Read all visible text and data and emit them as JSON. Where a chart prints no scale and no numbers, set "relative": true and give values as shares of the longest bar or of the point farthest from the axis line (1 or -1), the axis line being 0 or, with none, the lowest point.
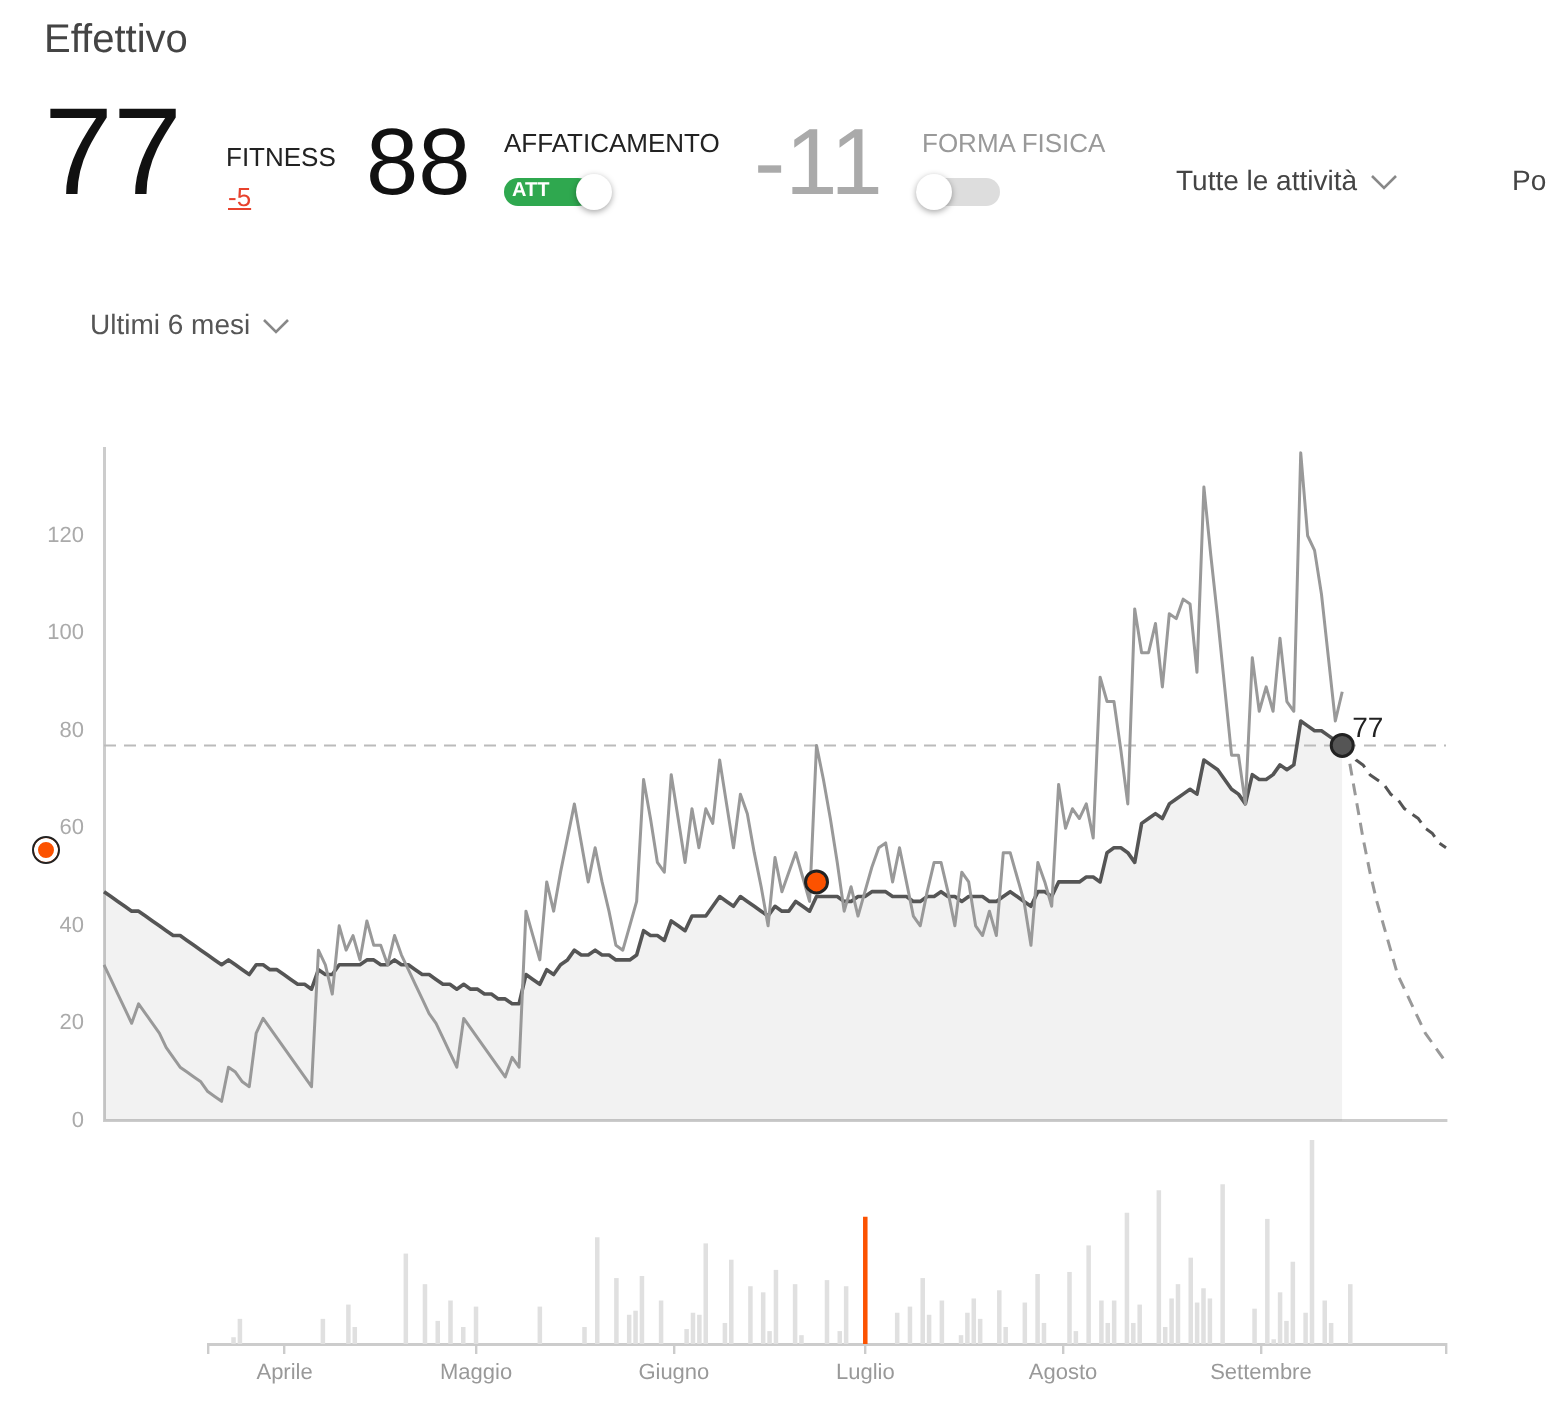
{
  "chart_data": [
    {
      "type": "line",
      "title": "Effettivo",
      "annotations": [
        "77",
        "FITNESS",
        "-5",
        "88",
        "AFFATICAMENTO",
        "ATT",
        "-11",
        "FORMA FISICA",
        "Tutte le attività",
        "Po",
        "Ultimi 6 mesi",
        {
          "text": "77",
          "y": 77
        }
      ],
      "categories": [
        null,
        null,
        null,
        null,
        null,
        null,
        null,
        null,
        null,
        null,
        null,
        null,
        null,
        null,
        null,
        null,
        null,
        null,
        null,
        null,
        null,
        null,
        null,
        null,
        null,
        null,
        null,
        null,
        null,
        null,
        null,
        null,
        null,
        null,
        null,
        null,
        null,
        null,
        null,
        null,
        null,
        null,
        null,
        null,
        null,
        null,
        null,
        null,
        null,
        null,
        null,
        null,
        null,
        null,
        null,
        null,
        null,
        null,
        null,
        null,
        null,
        null,
        null,
        null,
        null,
        null,
        null,
        null,
        null,
        null,
        null,
        null,
        null,
        null,
        null,
        null,
        null,
        null,
        null,
        null,
        null,
        null,
        null,
        null,
        null,
        null,
        null,
        null,
        null,
        null,
        null,
        null,
        null,
        null,
        null,
        null,
        null,
        null,
        null,
        null,
        null,
        null,
        null,
        null,
        null,
        null,
        null,
        null,
        null,
        null,
        null,
        null,
        null,
        null,
        null,
        null,
        null,
        null,
        null,
        null,
        null,
        null,
        null,
        null,
        null,
        null,
        null,
        null,
        null,
        null,
        null,
        null,
        null,
        null,
        null,
        null,
        null,
        null,
        null,
        null,
        null,
        null,
        null,
        null,
        null,
        null,
        null,
        null,
        null,
        null,
        null,
        null,
        null,
        null,
        null,
        null,
        null,
        null,
        null,
        null,
        null,
        null,
        null,
        null,
        null,
        null,
        null,
        null,
        null,
        null,
        null,
        null,
        null,
        null,
        null,
        null,
        null,
        null,
        null,
        null,
        null,
        null,
        null,
        null,
        null,
        null,
        null,
        null,
        null,
        null,
        null,
        null,
        null,
        null,
        null
      ],
      "ylim": [
        0,
        138
      ],
      "yticks": [
        0,
        20,
        40,
        60,
        80,
        100,
        120
      ],
      "tick_labels": "y",
      "grid": false,
      "legend": false,
      "marker": "none",
      "ref_lines": [
        {
          "axis": "y",
          "value": 77,
          "color": "#bbbbbb",
          "line_style": "dashed"
        }
      ],
      "series": [
        {
          "type": "area",
          "color": "#555555",
          "values": [
            47,
            46,
            45,
            44,
            43,
            43,
            42,
            41,
            40,
            39,
            38,
            38,
            37,
            36,
            35,
            34,
            33,
            32,
            33,
            32,
            31,
            30,
            32,
            32,
            31,
            31,
            30,
            29,
            28,
            28,
            27,
            31,
            30,
            30,
            32,
            32,
            32,
            32,
            33,
            33,
            32,
            32,
            33,
            32,
            32,
            31,
            30,
            30,
            29,
            28,
            28,
            27,
            28,
            27,
            27,
            26,
            26,
            25,
            25,
            24,
            24,
            30,
            29,
            28,
            31,
            30,
            32,
            33,
            35,
            34,
            34,
            35,
            34,
            34,
            33,
            33,
            33,
            34,
            39,
            38,
            38,
            37,
            41,
            40,
            39,
            42,
            42,
            42,
            44,
            46,
            45,
            44,
            46,
            45,
            44,
            43,
            42,
            44,
            43,
            43,
            45,
            44,
            43,
            46,
            46,
            46,
            46,
            45,
            45,
            46,
            46,
            47,
            47,
            47,
            46,
            46,
            46,
            45,
            45,
            46,
            46,
            47,
            46,
            46,
            45,
            46,
            46,
            46,
            45,
            45,
            46,
            47,
            46,
            45,
            44,
            47,
            47,
            46,
            49,
            49,
            49,
            49,
            50,
            50,
            49,
            55,
            56,
            56,
            55,
            53,
            61,
            62,
            63,
            62,
            65,
            66,
            67,
            68,
            67,
            74,
            73,
            72,
            70,
            68,
            67,
            65,
            71,
            70,
            70,
            71,
            73,
            72,
            73,
            82,
            81,
            80,
            80,
            79,
            78,
            77,
            null,
            null,
            null,
            null,
            null,
            null,
            null,
            null,
            null,
            null,
            null,
            null,
            null,
            null,
            null
          ]
        },
        {
          "type": "line",
          "color": "#999999",
          "values": [
            32,
            29,
            26,
            23,
            20,
            24,
            22,
            20,
            18,
            15,
            13,
            11,
            10,
            9,
            8,
            6,
            5,
            4,
            11,
            10,
            8,
            7,
            18,
            21,
            19,
            17,
            15,
            13,
            11,
            9,
            7,
            35,
            32,
            26,
            40,
            35,
            38,
            33,
            41,
            36,
            36,
            32,
            38,
            34,
            31,
            28,
            25,
            22,
            20,
            17,
            14,
            11,
            21,
            19,
            17,
            15,
            13,
            11,
            9,
            13,
            11,
            43,
            38,
            33,
            49,
            43,
            51,
            58,
            65,
            57,
            49,
            56,
            49,
            43,
            36,
            35,
            40,
            45,
            70,
            62,
            53,
            51,
            71,
            62,
            53,
            64,
            56,
            64,
            61,
            74,
            65,
            56,
            67,
            63,
            55,
            48,
            40,
            54,
            47,
            51,
            55,
            50,
            45,
            77,
            70,
            62,
            53,
            43,
            48,
            42,
            47,
            52,
            56,
            57,
            49,
            56,
            49,
            42,
            40,
            47,
            53,
            53,
            47,
            40,
            51,
            49,
            40,
            38,
            43,
            38,
            55,
            55,
            50,
            45,
            36,
            53,
            49,
            44,
            69,
            60,
            64,
            62,
            65,
            58,
            91,
            86,
            86,
            76,
            65,
            105,
            96,
            96,
            102,
            89,
            104,
            103,
            107,
            106,
            92,
            130,
            116,
            103,
            89,
            75,
            75,
            65,
            95,
            84,
            89,
            84,
            99,
            86,
            84,
            137,
            120,
            117,
            108,
            95,
            82,
            88,
            null,
            null,
            null,
            null,
            null,
            null,
            null,
            null,
            null,
            null,
            null,
            null,
            null,
            null,
            null
          ]
        },
        {
          "type": "line",
          "line_style": "dashed",
          "color": "#555555",
          "values": [
            null,
            null,
            null,
            null,
            null,
            null,
            null,
            null,
            null,
            null,
            null,
            null,
            null,
            null,
            null,
            null,
            null,
            null,
            null,
            null,
            null,
            null,
            null,
            null,
            null,
            null,
            null,
            null,
            null,
            null,
            null,
            null,
            null,
            null,
            null,
            null,
            null,
            null,
            null,
            null,
            null,
            null,
            null,
            null,
            null,
            null,
            null,
            null,
            null,
            null,
            null,
            null,
            null,
            null,
            null,
            null,
            null,
            null,
            null,
            null,
            null,
            null,
            null,
            null,
            null,
            null,
            null,
            null,
            null,
            null,
            null,
            null,
            null,
            null,
            null,
            null,
            null,
            null,
            null,
            null,
            null,
            null,
            null,
            null,
            null,
            null,
            null,
            null,
            null,
            null,
            null,
            null,
            null,
            null,
            null,
            null,
            null,
            null,
            null,
            null,
            null,
            null,
            null,
            null,
            null,
            null,
            null,
            null,
            null,
            null,
            null,
            null,
            null,
            null,
            null,
            null,
            null,
            null,
            null,
            null,
            null,
            null,
            null,
            null,
            null,
            null,
            null,
            null,
            null,
            null,
            null,
            null,
            null,
            null,
            null,
            null,
            null,
            null,
            null,
            null,
            null,
            null,
            null,
            null,
            null,
            null,
            null,
            null,
            null,
            null,
            null,
            null,
            null,
            null,
            null,
            null,
            null,
            null,
            null,
            null,
            null,
            null,
            null,
            null,
            null,
            null,
            null,
            null,
            null,
            null,
            null,
            null,
            null,
            null,
            null,
            null,
            null,
            null,
            null,
            77,
            76,
            74,
            73,
            71,
            70,
            69,
            67,
            66,
            64,
            63,
            62,
            60,
            59,
            57,
            56
          ]
        },
        {
          "type": "line",
          "line_style": "dashed",
          "color": "#999999",
          "values": [
            null,
            null,
            null,
            null,
            null,
            null,
            null,
            null,
            null,
            null,
            null,
            null,
            null,
            null,
            null,
            null,
            null,
            null,
            null,
            null,
            null,
            null,
            null,
            null,
            null,
            null,
            null,
            null,
            null,
            null,
            null,
            null,
            null,
            null,
            null,
            null,
            null,
            null,
            null,
            null,
            null,
            null,
            null,
            null,
            null,
            null,
            null,
            null,
            null,
            null,
            null,
            null,
            null,
            null,
            null,
            null,
            null,
            null,
            null,
            null,
            null,
            null,
            null,
            null,
            null,
            null,
            null,
            null,
            null,
            null,
            null,
            null,
            null,
            null,
            null,
            null,
            null,
            null,
            null,
            null,
            null,
            null,
            null,
            null,
            null,
            null,
            null,
            null,
            null,
            null,
            null,
            null,
            null,
            null,
            null,
            null,
            null,
            null,
            null,
            null,
            null,
            null,
            null,
            null,
            null,
            null,
            null,
            null,
            null,
            null,
            null,
            null,
            null,
            null,
            null,
            null,
            null,
            null,
            null,
            null,
            null,
            null,
            null,
            null,
            null,
            null,
            null,
            null,
            null,
            null,
            null,
            null,
            null,
            null,
            null,
            null,
            null,
            null,
            null,
            null,
            null,
            null,
            null,
            null,
            null,
            null,
            null,
            null,
            null,
            null,
            null,
            null,
            null,
            null,
            null,
            null,
            null,
            null,
            null,
            null,
            null,
            null,
            null,
            null,
            null,
            null,
            null,
            null,
            null,
            null,
            null,
            null,
            null,
            null,
            null,
            null,
            null,
            null,
            null,
            77,
            74,
            66,
            58,
            51,
            45,
            40,
            35,
            30,
            27,
            24,
            21,
            18,
            16,
            14,
            12
          ]
        },
        {
          "type": "scatter",
          "marker": "circle",
          "color": "#fc5200",
          "values": [
            null,
            null,
            null,
            null,
            null,
            null,
            null,
            null,
            null,
            null,
            null,
            null,
            null,
            null,
            null,
            null,
            null,
            null,
            null,
            null,
            null,
            null,
            null,
            null,
            null,
            null,
            null,
            null,
            null,
            null,
            null,
            null,
            null,
            null,
            null,
            null,
            null,
            null,
            null,
            null,
            null,
            null,
            null,
            null,
            null,
            null,
            null,
            null,
            null,
            null,
            null,
            null,
            null,
            null,
            null,
            null,
            null,
            null,
            null,
            null,
            null,
            null,
            null,
            null,
            null,
            null,
            null,
            null,
            null,
            null,
            null,
            null,
            null,
            null,
            null,
            null,
            null,
            null,
            null,
            null,
            null,
            null,
            null,
            null,
            null,
            null,
            null,
            null,
            null,
            null,
            null,
            null,
            null,
            null,
            null,
            null,
            null,
            null,
            null,
            null,
            null,
            null,
            null,
            49,
            null,
            null,
            null,
            null,
            null,
            null,
            null,
            null,
            null,
            null,
            null,
            null,
            null,
            null,
            null,
            null,
            null,
            null,
            null,
            null,
            null,
            null,
            null,
            null,
            null,
            null,
            null,
            null,
            null,
            null,
            null,
            null,
            null,
            null,
            null,
            null,
            null,
            null,
            null,
            null,
            null,
            null,
            null,
            null,
            null,
            null,
            null,
            null,
            null,
            null,
            null,
            null,
            null,
            null,
            null,
            null,
            null,
            null,
            null,
            null,
            null,
            null,
            null,
            null,
            null,
            null,
            null,
            null,
            null,
            null,
            null,
            null,
            null,
            null,
            null,
            null,
            null,
            null,
            null,
            null,
            null,
            null,
            null,
            null,
            null,
            null,
            null,
            null,
            null,
            null,
            null
          ]
        },
        {
          "type": "scatter",
          "marker": "circle",
          "color": "#555555",
          "values": [
            null,
            null,
            null,
            null,
            null,
            null,
            null,
            null,
            null,
            null,
            null,
            null,
            null,
            null,
            null,
            null,
            null,
            null,
            null,
            null,
            null,
            null,
            null,
            null,
            null,
            null,
            null,
            null,
            null,
            null,
            null,
            null,
            null,
            null,
            null,
            null,
            null,
            null,
            null,
            null,
            null,
            null,
            null,
            null,
            null,
            null,
            null,
            null,
            null,
            null,
            null,
            null,
            null,
            null,
            null,
            null,
            null,
            null,
            null,
            null,
            null,
            null,
            null,
            null,
            null,
            null,
            null,
            null,
            null,
            null,
            null,
            null,
            null,
            null,
            null,
            null,
            null,
            null,
            null,
            null,
            null,
            null,
            null,
            null,
            null,
            null,
            null,
            null,
            null,
            null,
            null,
            null,
            null,
            null,
            null,
            null,
            null,
            null,
            null,
            null,
            null,
            null,
            null,
            null,
            null,
            null,
            null,
            null,
            null,
            null,
            null,
            null,
            null,
            null,
            null,
            null,
            null,
            null,
            null,
            null,
            null,
            null,
            null,
            null,
            null,
            null,
            null,
            null,
            null,
            null,
            null,
            null,
            null,
            null,
            null,
            null,
            null,
            null,
            null,
            null,
            null,
            null,
            null,
            null,
            null,
            null,
            null,
            null,
            null,
            null,
            null,
            null,
            null,
            null,
            null,
            null,
            null,
            null,
            null,
            null,
            null,
            null,
            null,
            null,
            null,
            null,
            null,
            null,
            null,
            null,
            null,
            null,
            null,
            null,
            null,
            null,
            null,
            null,
            null,
            77,
            null,
            null,
            null,
            null,
            null,
            null,
            null,
            null,
            null,
            null,
            null,
            null,
            null,
            null,
            null
          ]
        }
      ]
    },
    {
      "type": "bar",
      "relative": true,
      "grid": false,
      "legend": false,
      "tick_labels": "x",
      "categories": [
        null,
        null,
        null,
        null,
        null,
        null,
        null,
        null,
        null,
        null,
        null,
        null,
        "Aprile",
        null,
        null,
        null,
        null,
        null,
        null,
        null,
        null,
        null,
        null,
        null,
        null,
        null,
        null,
        null,
        null,
        null,
        null,
        null,
        null,
        null,
        null,
        null,
        null,
        null,
        null,
        null,
        null,
        null,
        "Maggio",
        null,
        null,
        null,
        null,
        null,
        null,
        null,
        null,
        null,
        null,
        null,
        null,
        null,
        null,
        null,
        null,
        null,
        null,
        null,
        null,
        null,
        null,
        null,
        null,
        null,
        null,
        null,
        null,
        null,
        null,
        "Giugno",
        null,
        null,
        null,
        null,
        null,
        null,
        null,
        null,
        null,
        null,
        null,
        null,
        null,
        null,
        null,
        null,
        null,
        null,
        null,
        null,
        null,
        null,
        null,
        null,
        null,
        null,
        null,
        null,
        null,
        "Luglio",
        null,
        null,
        null,
        null,
        null,
        null,
        null,
        null,
        null,
        null,
        null,
        null,
        null,
        null,
        null,
        null,
        null,
        null,
        null,
        null,
        null,
        null,
        null,
        null,
        null,
        null,
        null,
        null,
        null,
        null,
        "Agosto",
        null,
        null,
        null,
        null,
        null,
        null,
        null,
        null,
        null,
        null,
        null,
        null,
        null,
        null,
        null,
        null,
        null,
        null,
        null,
        null,
        null,
        null,
        null,
        null,
        null,
        null,
        null,
        null,
        null,
        null,
        "Settembre",
        null,
        null,
        null,
        null,
        null,
        null,
        null,
        null,
        null,
        null,
        null,
        null,
        null,
        null,
        null,
        null,
        null,
        null,
        null,
        null,
        null,
        null,
        null,
        null,
        null,
        null,
        null,
        null,
        null
      ],
      "values": [
        null,
        null,
        null,
        null,
        0.03,
        0.12,
        null,
        null,
        null,
        null,
        null,
        null,
        null,
        null,
        null,
        null,
        null,
        null,
        0.12,
        null,
        null,
        null,
        0.19,
        0.08,
        null,
        null,
        null,
        null,
        null,
        null,
        null,
        0.44,
        null,
        null,
        0.29,
        null,
        0.11,
        null,
        0.21,
        null,
        0.08,
        null,
        0.18,
        null,
        null,
        null,
        null,
        null,
        null,
        null,
        null,
        null,
        0.18,
        null,
        null,
        null,
        null,
        null,
        null,
        0.08,
        null,
        0.52,
        null,
        null,
        0.32,
        null,
        0.14,
        0.16,
        0.33,
        null,
        null,
        0.21,
        null,
        null,
        null,
        0.07,
        0.15,
        0.14,
        0.49,
        null,
        null,
        0.1,
        0.41,
        null,
        null,
        0.28,
        null,
        0.25,
        0.06,
        0.36,
        null,
        null,
        0.29,
        0.04,
        null,
        null,
        null,
        0.31,
        null,
        0.06,
        0.28,
        null,
        null,
        0.62,
        null,
        null,
        null,
        null,
        0.15,
        null,
        0.18,
        null,
        0.32,
        0.14,
        null,
        0.21,
        null,
        null,
        0.04,
        0.15,
        0.22,
        0.12,
        null,
        null,
        0.26,
        0.08,
        null,
        null,
        0.2,
        null,
        0.34,
        0.1,
        null,
        null,
        null,
        0.35,
        0.06,
        null,
        0.48,
        null,
        0.21,
        0.1,
        0.21,
        null,
        0.64,
        0.1,
        0.19,
        null,
        null,
        0.75,
        0.08,
        0.22,
        0.29,
        null,
        0.42,
        0.2,
        0.27,
        0.22,
        null,
        0.78,
        null,
        null,
        null,
        null,
        0.17,
        null,
        0.61,
        0.02,
        0.25,
        0.11,
        0.4,
        null,
        0.15,
        1,
        null,
        0.21,
        0.1,
        null,
        null,
        0.29,
        null,
        null,
        null,
        null,
        null,
        null,
        null,
        null,
        null,
        null,
        null,
        null,
        null,
        null,
        null
      ],
      "colors": [
        "#e0e0e0",
        "#e0e0e0",
        "#e0e0e0",
        "#e0e0e0",
        "#e0e0e0",
        "#e0e0e0",
        "#e0e0e0",
        "#e0e0e0",
        "#e0e0e0",
        "#e0e0e0",
        "#e0e0e0",
        "#e0e0e0",
        "#e0e0e0",
        "#e0e0e0",
        "#e0e0e0",
        "#e0e0e0",
        "#e0e0e0",
        "#e0e0e0",
        "#e0e0e0",
        "#e0e0e0",
        "#e0e0e0",
        "#e0e0e0",
        "#e0e0e0",
        "#e0e0e0",
        "#e0e0e0",
        "#e0e0e0",
        "#e0e0e0",
        "#e0e0e0",
        "#e0e0e0",
        "#e0e0e0",
        "#e0e0e0",
        "#e0e0e0",
        "#e0e0e0",
        "#e0e0e0",
        "#e0e0e0",
        "#e0e0e0",
        "#e0e0e0",
        "#e0e0e0",
        "#e0e0e0",
        "#e0e0e0",
        "#e0e0e0",
        "#e0e0e0",
        "#e0e0e0",
        "#e0e0e0",
        "#e0e0e0",
        "#e0e0e0",
        "#e0e0e0",
        "#e0e0e0",
        "#e0e0e0",
        "#e0e0e0",
        "#e0e0e0",
        "#e0e0e0",
        "#e0e0e0",
        "#e0e0e0",
        "#e0e0e0",
        "#e0e0e0",
        "#e0e0e0",
        "#e0e0e0",
        "#e0e0e0",
        "#e0e0e0",
        "#e0e0e0",
        "#e0e0e0",
        "#e0e0e0",
        "#e0e0e0",
        "#e0e0e0",
        "#e0e0e0",
        "#e0e0e0",
        "#e0e0e0",
        "#e0e0e0",
        "#e0e0e0",
        "#e0e0e0",
        "#e0e0e0",
        "#e0e0e0",
        "#e0e0e0",
        "#e0e0e0",
        "#e0e0e0",
        "#e0e0e0",
        "#e0e0e0",
        "#e0e0e0",
        "#e0e0e0",
        "#e0e0e0",
        "#e0e0e0",
        "#e0e0e0",
        "#e0e0e0",
        "#e0e0e0",
        "#e0e0e0",
        "#e0e0e0",
        "#e0e0e0",
        "#e0e0e0",
        "#e0e0e0",
        "#e0e0e0",
        "#e0e0e0",
        "#e0e0e0",
        "#e0e0e0",
        "#e0e0e0",
        "#e0e0e0",
        "#e0e0e0",
        "#e0e0e0",
        "#e0e0e0",
        "#e0e0e0",
        "#e0e0e0",
        "#e0e0e0",
        "#e0e0e0",
        "#fc5200",
        "#e0e0e0",
        "#e0e0e0",
        "#e0e0e0",
        "#e0e0e0",
        "#e0e0e0",
        "#e0e0e0",
        "#e0e0e0",
        "#e0e0e0",
        "#e0e0e0",
        "#e0e0e0",
        "#e0e0e0",
        "#e0e0e0",
        "#e0e0e0",
        "#e0e0e0",
        "#e0e0e0",
        "#e0e0e0",
        "#e0e0e0",
        "#e0e0e0",
        "#e0e0e0",
        "#e0e0e0",
        "#e0e0e0",
        "#e0e0e0",
        "#e0e0e0",
        "#e0e0e0",
        "#e0e0e0",
        "#e0e0e0",
        "#e0e0e0",
        "#e0e0e0",
        "#e0e0e0",
        "#e0e0e0",
        "#e0e0e0",
        "#e0e0e0",
        "#e0e0e0",
        "#e0e0e0",
        "#e0e0e0",
        "#e0e0e0",
        "#e0e0e0",
        "#e0e0e0",
        "#e0e0e0",
        "#e0e0e0",
        "#e0e0e0",
        "#e0e0e0",
        "#e0e0e0",
        "#e0e0e0",
        "#e0e0e0",
        "#e0e0e0",
        "#e0e0e0",
        "#e0e0e0",
        "#e0e0e0",
        "#e0e0e0",
        "#e0e0e0",
        "#e0e0e0",
        "#e0e0e0",
        "#e0e0e0",
        "#e0e0e0",
        "#e0e0e0",
        "#e0e0e0",
        "#e0e0e0",
        "#e0e0e0",
        "#e0e0e0",
        "#e0e0e0",
        "#e0e0e0",
        "#e0e0e0",
        "#e0e0e0",
        "#e0e0e0",
        "#e0e0e0",
        "#e0e0e0",
        "#e0e0e0",
        "#e0e0e0",
        "#e0e0e0",
        "#e0e0e0",
        "#e0e0e0",
        "#e0e0e0",
        "#e0e0e0",
        "#e0e0e0",
        "#e0e0e0",
        "#e0e0e0",
        "#e0e0e0",
        "#e0e0e0",
        "#e0e0e0",
        "#e0e0e0",
        "#e0e0e0",
        "#e0e0e0",
        "#e0e0e0",
        "#e0e0e0",
        "#e0e0e0",
        "#e0e0e0",
        "#e0e0e0",
        "#e0e0e0",
        "#e0e0e0",
        "#e0e0e0"
      ]
    }
  ]
}
